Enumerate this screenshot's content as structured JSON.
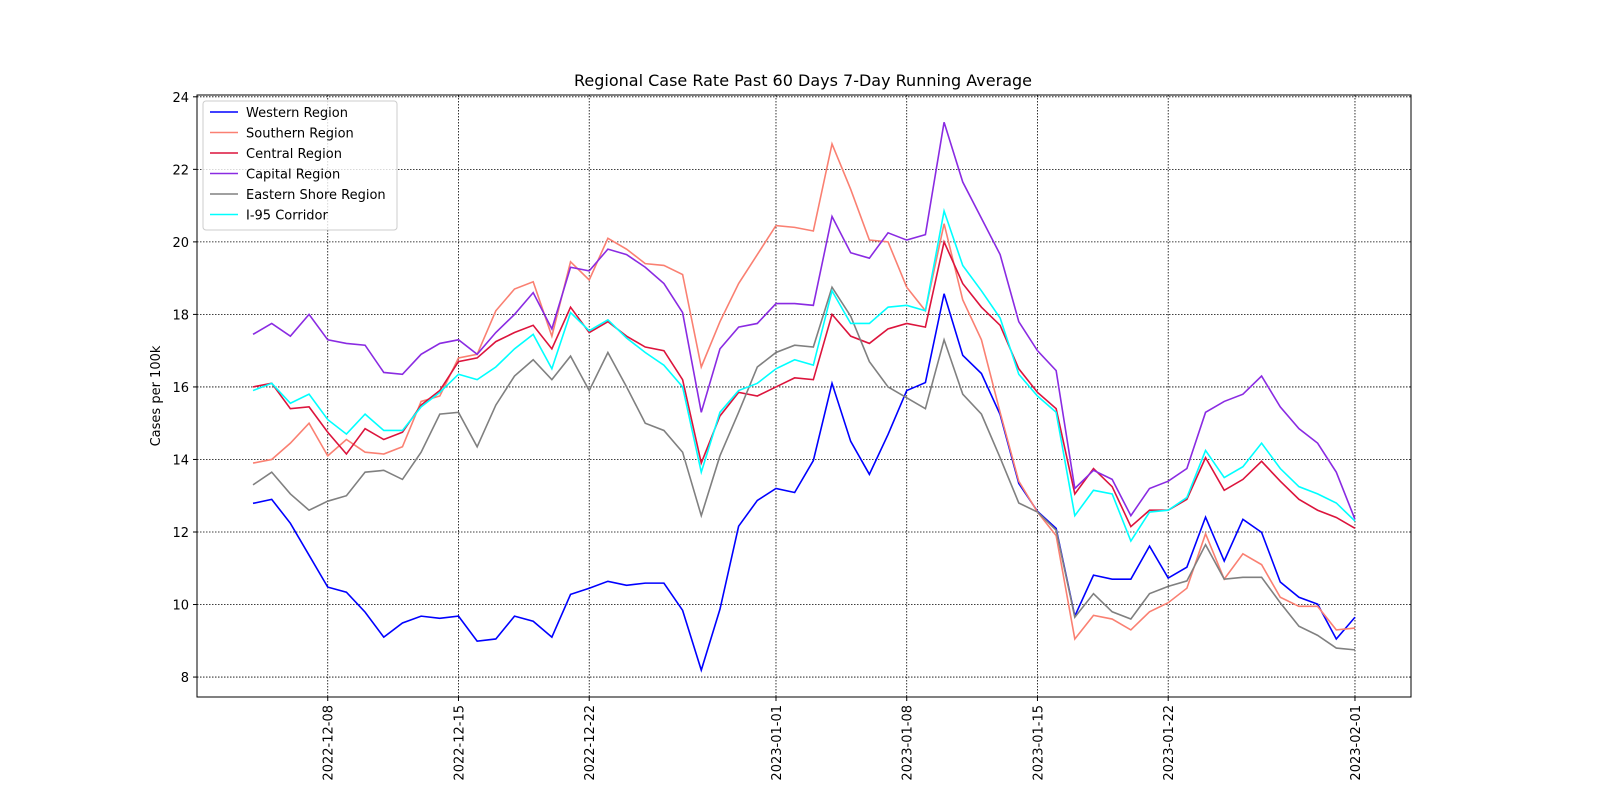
{
  "chart_data": {
    "type": "line",
    "title": "Regional Case Rate  Past 60 Days 7-Day Running Average",
    "ylabel": "Cases per 100k",
    "x": [
      "2022-12-04",
      "2022-12-05",
      "2022-12-06",
      "2022-12-07",
      "2022-12-08",
      "2022-12-09",
      "2022-12-10",
      "2022-12-11",
      "2022-12-12",
      "2022-12-13",
      "2022-12-14",
      "2022-12-15",
      "2022-12-16",
      "2022-12-17",
      "2022-12-18",
      "2022-12-19",
      "2022-12-20",
      "2022-12-21",
      "2022-12-22",
      "2022-12-23",
      "2022-12-24",
      "2022-12-25",
      "2022-12-26",
      "2022-12-27",
      "2022-12-28",
      "2022-12-29",
      "2022-12-30",
      "2022-12-31",
      "2023-01-01",
      "2023-01-02",
      "2023-01-03",
      "2023-01-04",
      "2023-01-05",
      "2023-01-06",
      "2023-01-07",
      "2023-01-08",
      "2023-01-09",
      "2023-01-10",
      "2023-01-11",
      "2023-01-12",
      "2023-01-13",
      "2023-01-14",
      "2023-01-15",
      "2023-01-16",
      "2023-01-17",
      "2023-01-18",
      "2023-01-19",
      "2023-01-20",
      "2023-01-21",
      "2023-01-22",
      "2023-01-23",
      "2023-01-24",
      "2023-01-25",
      "2023-01-26",
      "2023-01-27",
      "2023-01-28",
      "2023-01-29",
      "2023-01-30",
      "2023-01-31",
      "2023-02-01"
    ],
    "series": [
      {
        "name": "Western Region",
        "color": "#0000ff",
        "values": [
          12.79,
          12.9,
          12.24,
          11.36,
          10.48,
          10.34,
          9.79,
          9.1,
          9.49,
          9.68,
          9.62,
          9.68,
          8.99,
          9.05,
          9.68,
          9.54,
          9.1,
          10.28,
          10.45,
          10.64,
          10.53,
          10.59,
          10.59,
          9.84,
          8.19,
          9.87,
          12.16,
          12.87,
          13.2,
          13.09,
          13.97,
          16.1,
          14.5,
          13.59,
          14.69,
          15.9,
          16.12,
          18.57,
          16.87,
          16.37,
          15.24,
          13.34,
          12.57,
          12.1,
          9.68,
          10.81,
          10.7,
          10.7,
          11.61,
          10.73,
          11.03,
          12.41,
          11.2,
          12.35,
          11.99,
          10.62,
          10.2,
          10.01,
          9.05,
          9.65
        ]
      },
      {
        "name": "Southern Region",
        "color": "#fa8072",
        "values": [
          13.9,
          14.0,
          14.45,
          15.0,
          14.1,
          14.55,
          14.2,
          14.15,
          14.35,
          15.6,
          15.75,
          16.8,
          16.9,
          18.1,
          18.7,
          18.9,
          17.4,
          19.45,
          18.95,
          20.1,
          19.8,
          19.4,
          19.35,
          19.1,
          16.55,
          17.8,
          18.85,
          19.65,
          20.45,
          20.4,
          20.3,
          22.7,
          21.45,
          20.05,
          20.0,
          18.75,
          18.1,
          20.5,
          18.4,
          17.3,
          15.3,
          13.4,
          12.55,
          11.9,
          9.05,
          9.7,
          9.6,
          9.3,
          9.8,
          10.05,
          10.45,
          11.95,
          10.7,
          11.4,
          11.1,
          10.2,
          9.95,
          9.95,
          9.3,
          9.35
        ]
      },
      {
        "name": "Central Region",
        "color": "#dc143c",
        "values": [
          16.0,
          16.1,
          15.4,
          15.45,
          14.75,
          14.15,
          14.85,
          14.55,
          14.75,
          15.5,
          15.9,
          16.7,
          16.8,
          17.25,
          17.5,
          17.7,
          17.05,
          18.2,
          17.5,
          17.8,
          17.4,
          17.1,
          17.0,
          16.2,
          13.9,
          15.2,
          15.85,
          15.75,
          16.0,
          16.25,
          16.2,
          18.0,
          17.4,
          17.2,
          17.6,
          17.75,
          17.65,
          20.0,
          18.85,
          18.2,
          17.7,
          16.5,
          15.85,
          15.4,
          13.05,
          13.75,
          13.25,
          12.15,
          12.6,
          12.6,
          12.9,
          14.05,
          13.15,
          13.45,
          13.95,
          13.4,
          12.9,
          12.6,
          12.4,
          12.1
        ]
      },
      {
        "name": "Capital Region",
        "color": "#8a2be2",
        "values": [
          17.45,
          17.75,
          17.4,
          18.0,
          17.3,
          17.2,
          17.15,
          16.4,
          16.35,
          16.9,
          17.2,
          17.3,
          16.9,
          17.5,
          18.0,
          18.6,
          17.6,
          19.3,
          19.2,
          19.8,
          19.65,
          19.3,
          18.85,
          18.05,
          15.3,
          17.05,
          17.65,
          17.75,
          18.3,
          18.3,
          18.25,
          20.7,
          19.7,
          19.55,
          20.25,
          20.05,
          20.2,
          23.3,
          21.65,
          20.65,
          19.65,
          17.8,
          17.0,
          16.45,
          13.2,
          13.7,
          13.45,
          12.45,
          13.2,
          13.4,
          13.75,
          15.3,
          15.6,
          15.8,
          16.3,
          15.45,
          14.85,
          14.45,
          13.65,
          12.35
        ]
      },
      {
        "name": "Eastern Shore Region",
        "color": "#808080",
        "values": [
          13.3,
          13.65,
          13.05,
          12.6,
          12.85,
          13.0,
          13.65,
          13.7,
          13.45,
          14.2,
          15.25,
          15.3,
          14.35,
          15.5,
          16.3,
          16.75,
          16.2,
          16.85,
          15.9,
          16.95,
          16.0,
          15.0,
          14.8,
          14.2,
          12.45,
          14.1,
          15.3,
          16.55,
          16.95,
          17.15,
          17.1,
          18.75,
          17.95,
          16.7,
          16.0,
          15.7,
          15.4,
          17.3,
          15.8,
          15.25,
          14.05,
          12.8,
          12.55,
          12.05,
          9.65,
          10.3,
          9.8,
          9.6,
          10.3,
          10.5,
          10.65,
          11.65,
          10.7,
          10.75,
          10.75,
          10.05,
          9.4,
          9.15,
          8.8,
          8.75
        ]
      },
      {
        "name": "I-95 Corridor",
        "color": "#00ffff",
        "values": [
          15.9,
          16.1,
          15.55,
          15.8,
          15.1,
          14.7,
          15.25,
          14.8,
          14.8,
          15.45,
          15.85,
          16.35,
          16.2,
          16.55,
          17.05,
          17.45,
          16.5,
          18.05,
          17.55,
          17.85,
          17.35,
          16.95,
          16.6,
          16.0,
          13.65,
          15.3,
          15.9,
          16.1,
          16.5,
          16.75,
          16.6,
          18.65,
          17.75,
          17.75,
          18.2,
          18.25,
          18.1,
          20.85,
          19.35,
          18.65,
          17.9,
          16.35,
          15.75,
          15.3,
          12.45,
          13.15,
          13.05,
          11.75,
          12.55,
          12.6,
          12.95,
          14.25,
          13.5,
          13.8,
          14.45,
          13.75,
          13.25,
          13.05,
          12.8,
          12.3
        ]
      }
    ],
    "xlim": [
      "2022-12-01",
      "2023-02-04"
    ],
    "xticks": [
      "2022-12-08",
      "2022-12-15",
      "2022-12-22",
      "2023-01-01",
      "2023-01-08",
      "2023-01-15",
      "2023-01-22",
      "2023-02-01"
    ],
    "ylim": [
      7.45,
      24.05
    ],
    "yticks": [
      8,
      10,
      12,
      14,
      16,
      18,
      20,
      22,
      24
    ],
    "grid": true,
    "legend": "upper left"
  }
}
